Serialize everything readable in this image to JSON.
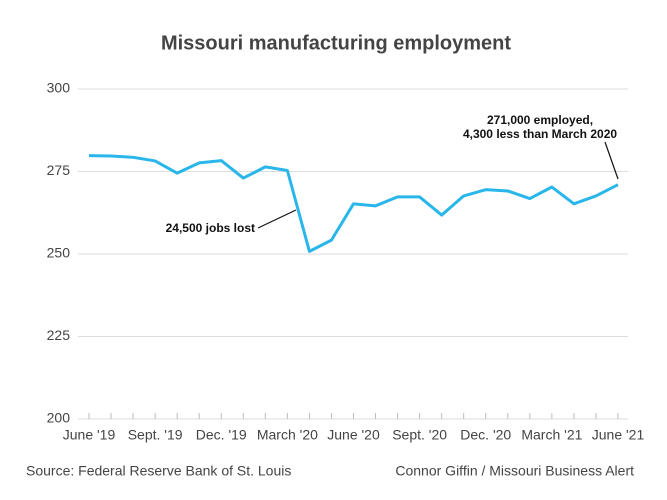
{
  "chart_data": {
    "type": "line",
    "title": "Missouri manufacturing employment",
    "categories": [
      "June '19",
      null,
      null,
      "Sept. '19",
      null,
      null,
      "Dec. '19",
      null,
      null,
      "March '20",
      null,
      null,
      "June '20",
      null,
      null,
      "Sept. '20",
      null,
      null,
      "Dec. '20",
      null,
      null,
      "March '21",
      null,
      null,
      "June '21"
    ],
    "series": [
      {
        "name": "Manufacturing employment",
        "color": "#29b6ea",
        "values": [
          279.8,
          279.7,
          279.3,
          278.2,
          274.5,
          277.6,
          278.3,
          273,
          276.4,
          275.3,
          250.8,
          254.2,
          265.2,
          264.6,
          267.3,
          267.3,
          261.8,
          267.6,
          269.5,
          269.1,
          266.8,
          270.3,
          265.2,
          267.6,
          271
        ]
      }
    ],
    "ylim": [
      200,
      300
    ],
    "yticks": [
      200,
      225,
      250,
      275,
      300
    ],
    "grid": true,
    "annotations": [
      {
        "lines": [
          "24,500 jobs lost"
        ]
      },
      {
        "lines": [
          "271,000 employed,",
          "4,300 less than March 2020"
        ]
      }
    ],
    "source": "Source: Federal Reserve Bank of St. Louis",
    "credit": "Connor Giffin / Missouri Business Alert"
  }
}
